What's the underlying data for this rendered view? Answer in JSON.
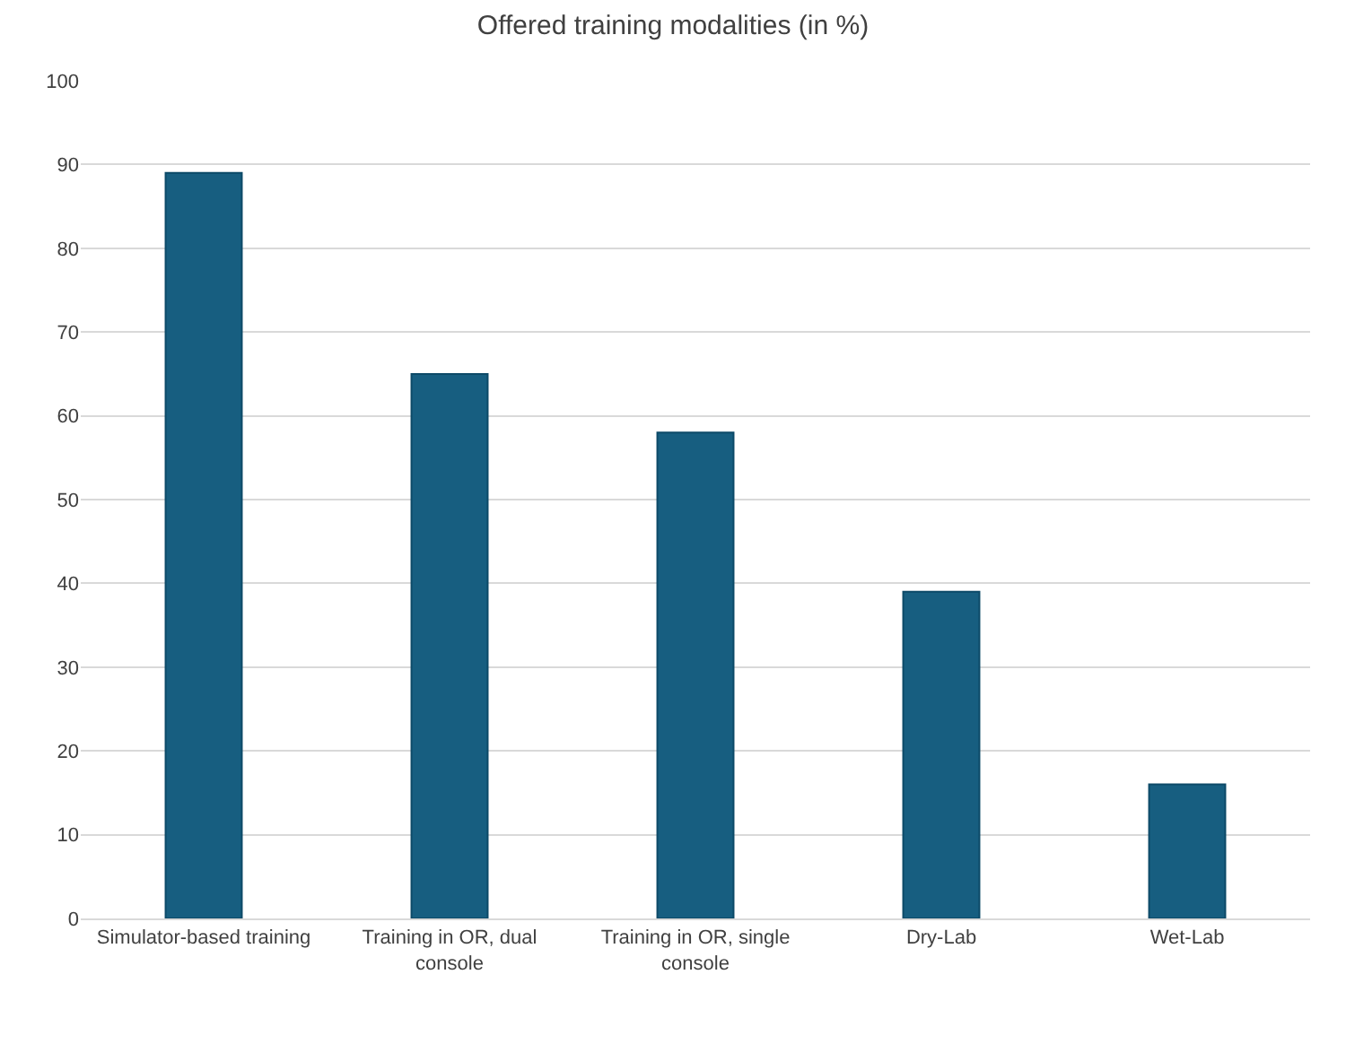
{
  "chart_data": {
    "type": "bar",
    "title": "Offered training modalities (in %)",
    "categories": [
      "Simulator-based training",
      "Training in OR, dual console",
      "Training in OR, single console",
      "Dry-Lab",
      "Wet-Lab"
    ],
    "values": [
      89,
      65,
      58,
      39,
      16
    ],
    "color": "#175e80",
    "ylim": [
      0,
      100
    ],
    "yticks": [
      0,
      10,
      20,
      30,
      40,
      50,
      60,
      70,
      80,
      90,
      100
    ],
    "grid": "y"
  }
}
